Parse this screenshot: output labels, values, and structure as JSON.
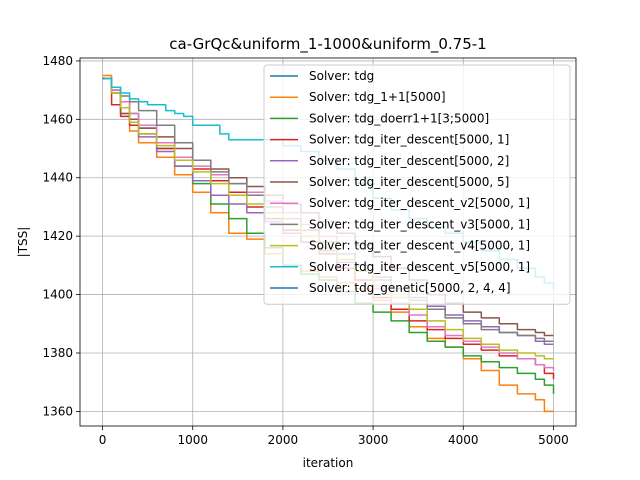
{
  "chart_data": {
    "type": "line",
    "title": "ca-GrQc&uniform_1-1000&uniform_0.75-1",
    "xlabel": "iteration",
    "ylabel": "|TSS|",
    "xlim": [
      -250,
      5250
    ],
    "ylim": [
      1355,
      1481
    ],
    "xticks": [
      0,
      1000,
      2000,
      3000,
      4000,
      5000
    ],
    "yticks": [
      1360,
      1380,
      1400,
      1420,
      1440,
      1460,
      1480
    ],
    "grid": true,
    "legend_position": "top-right",
    "series": [
      {
        "name": "Solver: tdg",
        "color": "#1f77b4",
        "x": [
          0,
          20
        ],
        "y": [
          1474,
          1474
        ]
      },
      {
        "name": "Solver: tdg_1+1[5000]",
        "color": "#ff7f0e",
        "x": [
          0,
          100,
          200,
          300,
          400,
          600,
          800,
          1000,
          1200,
          1400,
          1600,
          1800,
          2000,
          2200,
          2400,
          2600,
          2800,
          3000,
          3200,
          3400,
          3600,
          3800,
          4000,
          4200,
          4400,
          4600,
          4800,
          4900,
          5000
        ],
        "y": [
          1475,
          1470,
          1462,
          1456,
          1452,
          1447,
          1441,
          1435,
          1428,
          1421,
          1419,
          1414,
          1410,
          1408,
          1406,
          1404,
          1402,
          1398,
          1394,
          1389,
          1385,
          1382,
          1378,
          1374,
          1369,
          1366,
          1364,
          1360,
          1360
        ]
      },
      {
        "name": "Solver: tdg_doerr1+1[3;5000]",
        "color": "#2ca02c",
        "x": [
          0,
          100,
          200,
          300,
          400,
          600,
          800,
          1000,
          1200,
          1400,
          1600,
          1800,
          2000,
          2200,
          2400,
          2600,
          2800,
          3000,
          3200,
          3400,
          3600,
          3800,
          4000,
          4200,
          4400,
          4600,
          4800,
          4900,
          5000
        ],
        "y": [
          1474,
          1470,
          1466,
          1462,
          1457,
          1450,
          1444,
          1438,
          1431,
          1426,
          1421,
          1416,
          1410,
          1407,
          1405,
          1401,
          1397,
          1394,
          1391,
          1387,
          1384,
          1382,
          1379,
          1377,
          1375,
          1373,
          1371,
          1369,
          1366
        ]
      },
      {
        "name": "Solver: tdg_iter_descent[5000, 1]",
        "color": "#d62728",
        "x": [
          0,
          100,
          200,
          300,
          400,
          600,
          800,
          1000,
          1200,
          1400,
          1600,
          1800,
          2000,
          2200,
          2400,
          2600,
          2800,
          3000,
          3200,
          3400,
          3600,
          3800,
          4000,
          4200,
          4400,
          4600,
          4800,
          4900,
          5000
        ],
        "y": [
          1474,
          1465,
          1461,
          1458,
          1455,
          1450,
          1446,
          1443,
          1439,
          1435,
          1430,
          1426,
          1422,
          1418,
          1414,
          1409,
          1405,
          1399,
          1395,
          1391,
          1388,
          1385,
          1383,
          1381,
          1379,
          1378,
          1376,
          1373,
          1371
        ]
      },
      {
        "name": "Solver: tdg_iter_descent[5000, 2]",
        "color": "#9467bd",
        "x": [
          0,
          100,
          200,
          300,
          400,
          600,
          800,
          1000,
          1200,
          1400,
          1600,
          1800,
          2000,
          2200,
          2400,
          2600,
          2800,
          3000,
          3200,
          3400,
          3600,
          3800,
          4000,
          4200,
          4400,
          4600,
          4800,
          4900,
          5000
        ],
        "y": [
          1474,
          1470,
          1464,
          1459,
          1454,
          1449,
          1444,
          1439,
          1434,
          1431,
          1428,
          1425,
          1421,
          1418,
          1415,
          1411,
          1408,
          1405,
          1402,
          1399,
          1396,
          1393,
          1391,
          1389,
          1387,
          1386,
          1384,
          1383,
          1383
        ]
      },
      {
        "name": "Solver: tdg_iter_descent[5000, 5]",
        "color": "#8c564b",
        "x": [
          0,
          100,
          200,
          300,
          400,
          600,
          800,
          1000,
          1200,
          1400,
          1600,
          1800,
          2000,
          2200,
          2400,
          2600,
          2800,
          3000,
          3200,
          3400,
          3600,
          3800,
          4000,
          4200,
          4400,
          4600,
          4800,
          4900,
          5000
        ],
        "y": [
          1474,
          1469,
          1462,
          1460,
          1457,
          1454,
          1450,
          1446,
          1443,
          1440,
          1437,
          1434,
          1431,
          1428,
          1425,
          1421,
          1417,
          1413,
          1409,
          1405,
          1400,
          1397,
          1394,
          1392,
          1390,
          1388,
          1387,
          1386,
          1386
        ]
      },
      {
        "name": "Solver: tdg_iter_descent_v2[5000, 1]",
        "color": "#e377c2",
        "x": [
          0,
          100,
          200,
          300,
          400,
          600,
          800,
          1000,
          1200,
          1400,
          1600,
          1800,
          2000,
          2200,
          2400,
          2600,
          2800,
          3000,
          3200,
          3400,
          3600,
          3800,
          4000,
          4200,
          4400,
          4600,
          4800,
          4900,
          5000
        ],
        "y": [
          1474,
          1470,
          1466,
          1462,
          1458,
          1452,
          1447,
          1444,
          1441,
          1438,
          1435,
          1432,
          1428,
          1424,
          1420,
          1414,
          1408,
          1402,
          1397,
          1393,
          1389,
          1386,
          1384,
          1382,
          1380,
          1378,
          1376,
          1375,
          1374
        ]
      },
      {
        "name": "Solver: tdg_iter_descent_v3[5000, 1]",
        "color": "#7f7f7f",
        "x": [
          0,
          100,
          200,
          300,
          400,
          600,
          800,
          1000,
          1200,
          1400,
          1600,
          1800,
          2000,
          2200,
          2400,
          2600,
          2800,
          3000,
          3200,
          3400,
          3600,
          3800,
          4000,
          4200,
          4400,
          4600,
          4800,
          4900,
          5000
        ],
        "y": [
          1474,
          1471,
          1468,
          1466,
          1463,
          1458,
          1452,
          1446,
          1442,
          1438,
          1434,
          1430,
          1426,
          1422,
          1418,
          1414,
          1410,
          1406,
          1402,
          1398,
          1395,
          1392,
          1390,
          1388,
          1387,
          1386,
          1385,
          1384,
          1384
        ]
      },
      {
        "name": "Solver: tdg_iter_descent_v4[5000, 1]",
        "color": "#bcbd22",
        "x": [
          0,
          100,
          200,
          300,
          400,
          600,
          800,
          1000,
          1200,
          1400,
          1600,
          1800,
          2000,
          2200,
          2400,
          2600,
          2800,
          3000,
          3200,
          3400,
          3600,
          3800,
          4000,
          4200,
          4400,
          4600,
          4800,
          4900,
          5000
        ],
        "y": [
          1474,
          1469,
          1464,
          1459,
          1455,
          1451,
          1446,
          1442,
          1438,
          1434,
          1431,
          1428,
          1424,
          1420,
          1416,
          1412,
          1408,
          1403,
          1399,
          1395,
          1391,
          1388,
          1385,
          1383,
          1381,
          1380,
          1379,
          1378,
          1378
        ]
      },
      {
        "name": "Solver: tdg_iter_descent_v5[5000, 1]",
        "color": "#17becf",
        "x": [
          0,
          100,
          200,
          300,
          400,
          500,
          600,
          700,
          800,
          900,
          1000,
          1200,
          1300,
          1400,
          1600,
          1800,
          2000,
          2200,
          2400,
          2600,
          2800,
          3000,
          3200,
          3400,
          3600,
          3800,
          4000,
          4200,
          4400,
          4600,
          4800,
          4900,
          5000
        ],
        "y": [
          1474,
          1471,
          1469,
          1467,
          1466,
          1465,
          1465,
          1463,
          1462,
          1461,
          1458,
          1458,
          1455,
          1453,
          1453,
          1453,
          1451,
          1449,
          1446,
          1443,
          1438,
          1433,
          1429,
          1426,
          1423,
          1421,
          1418,
          1415,
          1412,
          1409,
          1406,
          1404,
          1402
        ]
      },
      {
        "name": "Solver: tdg_genetic[5000, 2, 4, 4]",
        "color": "#1f77b4",
        "x": [
          0,
          20
        ],
        "y": [
          1474,
          1474
        ]
      }
    ]
  }
}
